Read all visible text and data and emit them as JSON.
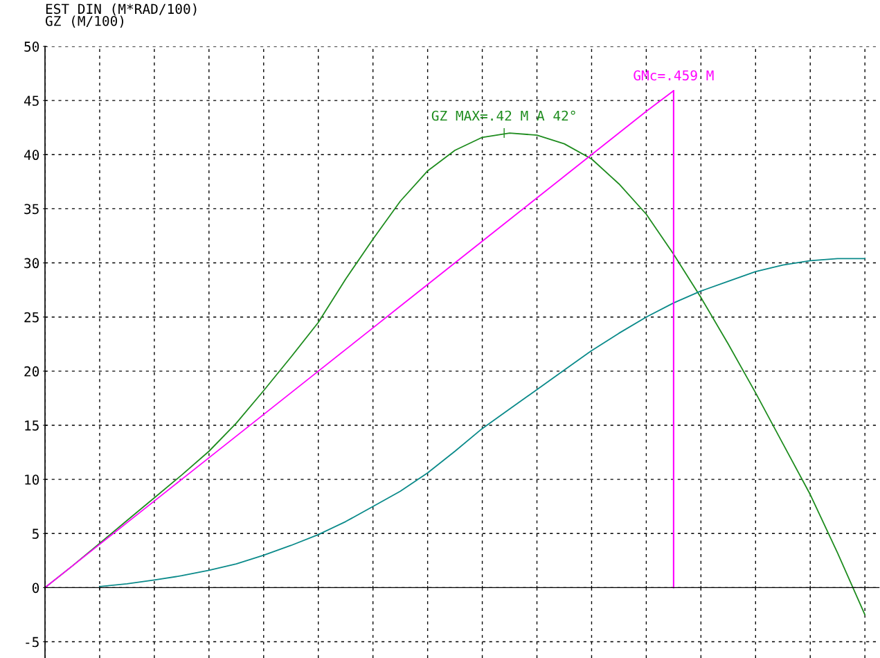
{
  "chart_data": {
    "type": "line",
    "ylabel": "EST DIN (M*RAD/100)\nGZ (M/100)",
    "categories": [
      null,
      null,
      null,
      null,
      null,
      null,
      null,
      null,
      null,
      null,
      null,
      null,
      null,
      null,
      null,
      null,
      null,
      null,
      null,
      null,
      null,
      null,
      null,
      null,
      null,
      null,
      null,
      null,
      null,
      null,
      null
    ],
    "series": [
      {
        "color": "#1e8c1e",
        "values": [
          0,
          2.0,
          4.1,
          6.2,
          8.3,
          10.4,
          12.6,
          15.2,
          18.2,
          21.3,
          24.5,
          28.5,
          32.2,
          35.7,
          38.5,
          40.4,
          41.6,
          42.0,
          41.8,
          41.0,
          39.6,
          37.3,
          34.5,
          30.8,
          26.8,
          22.5,
          18.0,
          13.3,
          8.6,
          3.2,
          -2.5
        ]
      },
      {
        "color": "#ff00ff",
        "values": [
          0,
          2.0,
          4.0,
          6.0,
          8.0,
          10.0,
          12.0,
          14.0,
          16.0,
          18.0,
          20.0,
          22.0,
          24.0,
          26.0,
          28.0,
          30.0,
          32.0,
          34.0,
          36.0,
          38.0,
          40.0,
          42.0,
          44.0,
          45.9,
          null,
          null,
          null,
          null,
          null,
          null,
          null
        ]
      },
      {
        "color": "#0a8a8a",
        "values": [
          null,
          null,
          0.1,
          0.35,
          0.7,
          1.1,
          1.6,
          2.2,
          3.0,
          3.9,
          4.9,
          6.1,
          7.5,
          8.9,
          10.6,
          12.6,
          14.7,
          16.5,
          18.3,
          20.1,
          21.9,
          23.5,
          25.0,
          26.3,
          27.4,
          28.3,
          29.2,
          29.8,
          30.2,
          30.4,
          30.4
        ]
      }
    ],
    "annotations": [
      {
        "text": "GZ MAX=.42 M A 42°",
        "y": 42
      },
      {
        "text": "GMc=.459 M",
        "y": 45.9
      }
    ],
    "ylim": [
      -6.5,
      50
    ],
    "yticks": [
      {
        "value": -5,
        "label": "-5"
      },
      0,
      5,
      10,
      15,
      20,
      25,
      30,
      35,
      40,
      45,
      50
    ],
    "tick_labels": "y",
    "grid": true,
    "marker": "none",
    "line_style": "solid"
  }
}
